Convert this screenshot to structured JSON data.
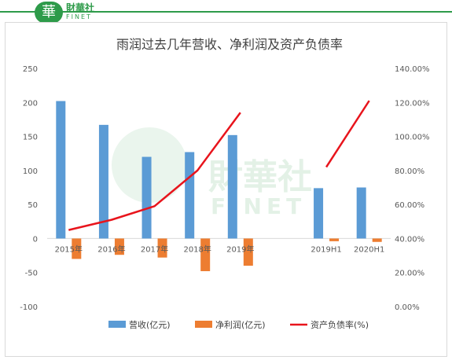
{
  "brand": {
    "badge": "華",
    "name": "財華社",
    "en": "FINET"
  },
  "chart_data": {
    "type": "bar",
    "title": "雨润过去几年营收、净利润及资产负债率",
    "categories": [
      "2015年",
      "2016年",
      "2017年",
      "2018年",
      "2019年",
      "",
      "2019H1",
      "2020H1"
    ],
    "series": [
      {
        "name": "营收(亿元)",
        "type": "bar",
        "axis": "left",
        "color": "#5b9bd5",
        "values": [
          202,
          167,
          120,
          127,
          152,
          null,
          74,
          75
        ]
      },
      {
        "name": "净利润(亿元)",
        "type": "bar",
        "axis": "left",
        "color": "#ed7d31",
        "values": [
          -30,
          -24,
          -28,
          -48,
          -40,
          null,
          -4,
          -5
        ]
      },
      {
        "name": "资产负债率(%)",
        "type": "line",
        "axis": "right",
        "color": "#e8141c",
        "values": [
          0.45,
          0.51,
          0.59,
          0.8,
          1.14,
          null,
          0.82,
          1.21
        ]
      }
    ],
    "left_axis": {
      "ylim": [
        -100,
        250
      ],
      "ticks": [
        "250",
        "200",
        "150",
        "100",
        "50",
        "0",
        "-50",
        "-100"
      ]
    },
    "right_axis": {
      "ylim": [
        0,
        1.4
      ],
      "ticks": [
        "140.00%",
        "120.00%",
        "100.00%",
        "80.00%",
        "60.00%",
        "40.00%",
        "20.00%",
        "0.00%"
      ]
    },
    "legend_position": "bottom",
    "grid": false
  }
}
